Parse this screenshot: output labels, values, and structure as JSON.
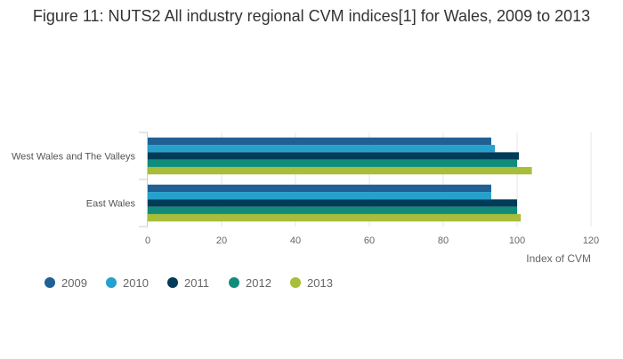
{
  "chart_data": {
    "type": "bar",
    "orientation": "horizontal",
    "title": "Figure 11: NUTS2 All industry regional CVM indices[1] for Wales, 2009 to 2013",
    "categories": [
      "West Wales and The Valleys",
      "East Wales"
    ],
    "series": [
      {
        "name": "2009",
        "color": "#206095",
        "values": [
          93,
          93
        ]
      },
      {
        "name": "2010",
        "color": "#27a0cc",
        "values": [
          94,
          93
        ]
      },
      {
        "name": "2011",
        "color": "#003c57",
        "values": [
          100.5,
          100
        ]
      },
      {
        "name": "2012",
        "color": "#118c7b",
        "values": [
          100,
          100
        ]
      },
      {
        "name": "2013",
        "color": "#a8bd3a",
        "values": [
          104,
          101
        ]
      }
    ],
    "xlabel": "Index of CVM",
    "ylabel": "",
    "xlim": [
      0,
      120
    ],
    "xticks": [
      0,
      20,
      40,
      60,
      80,
      100,
      120
    ],
    "grid": true,
    "legend": "bottom-left"
  }
}
